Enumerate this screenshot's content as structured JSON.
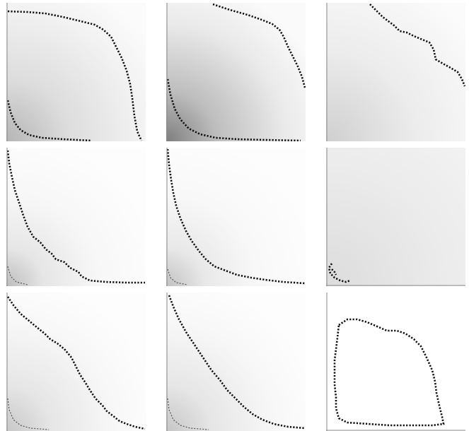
{
  "figure": {
    "rows": 3,
    "cols": 3,
    "panels": [
      {
        "id": "r1c1",
        "shading": "radial-grey-lower-left",
        "contours": [
          "large-outer",
          "small-inner"
        ]
      },
      {
        "id": "r1c2",
        "shading": "radial-grey-lower-left-dark",
        "contours": [
          "large-outer",
          "small-inner-dark"
        ]
      },
      {
        "id": "r1c3",
        "shading": "light-grey-lower-left",
        "contours": [
          "upper-right-arc"
        ]
      },
      {
        "id": "r2c1",
        "shading": "light-lower-left",
        "contours": [
          "steep-decay",
          "tiny-inner"
        ]
      },
      {
        "id": "r2c2",
        "shading": "light-lower-left",
        "contours": [
          "smooth-decay",
          "tiny-inner"
        ]
      },
      {
        "id": "r2c3",
        "shading": "flat-light-grey",
        "contours": [
          "tiny-corner-loop"
        ]
      },
      {
        "id": "r3c1",
        "shading": "light-lower-left",
        "contours": [
          "diagonal-decay",
          "inner-arc"
        ]
      },
      {
        "id": "r3c2",
        "shading": "light-lower-left",
        "contours": [
          "smooth-diagonal",
          "inner-arc"
        ]
      },
      {
        "id": "r3c3",
        "shading": "white",
        "contours": [
          "closed-loop-sparse"
        ]
      }
    ]
  }
}
